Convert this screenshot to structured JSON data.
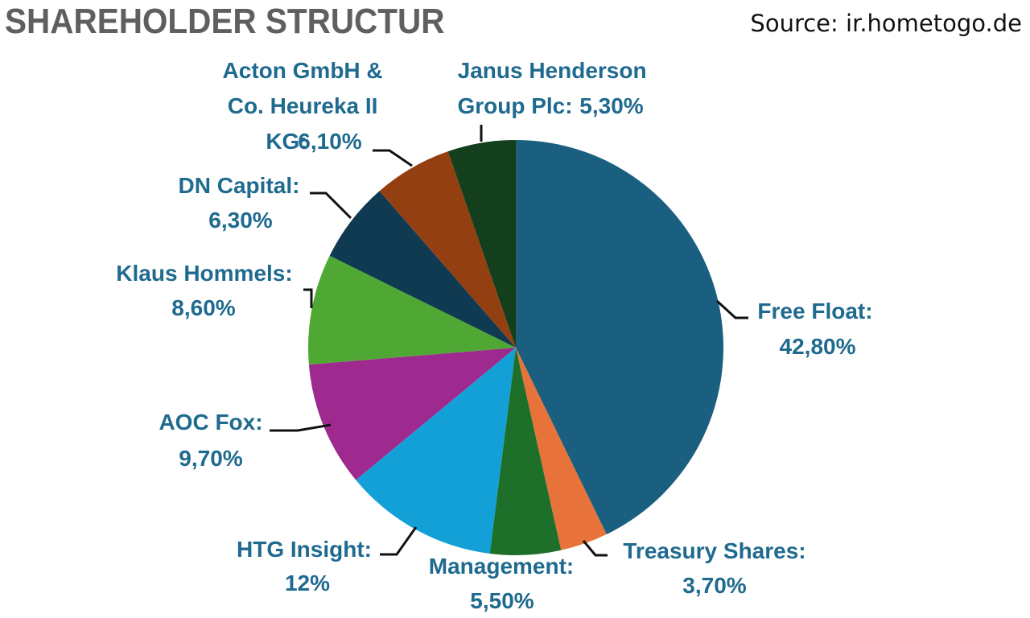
{
  "header": {
    "title": "SHAREHOLDER STRUCTUR",
    "source": "Source: ir.hometogo.de"
  },
  "chart_data": {
    "type": "pie",
    "title": "SHAREHOLDER STRUCTUR",
    "start_angle_deg": 0,
    "direction": "clockwise",
    "slices": [
      {
        "key": "free-float",
        "name": "Free Float:",
        "value_label": "42,80%",
        "value": 42.8,
        "color": "#1b5f80"
      },
      {
        "key": "treasury-shares",
        "name": "Treasury Shares:",
        "value_label": "3,70%",
        "value": 3.7,
        "color": "#e8733a"
      },
      {
        "key": "management",
        "name": "Management:",
        "value_label": "5,50%",
        "value": 5.5,
        "color": "#1e6f2a"
      },
      {
        "key": "htg-insight",
        "name": "HTG Insight:",
        "value_label": "12%",
        "value": 12.0,
        "color": "#12a0d6"
      },
      {
        "key": "aoc-fox",
        "name": "AOC Fox:",
        "value_label": "9,70%",
        "value": 9.7,
        "color": "#9e2a8f"
      },
      {
        "key": "klaus-hommels",
        "name": "Klaus Hommels:",
        "value_label": "8,60%",
        "value": 8.6,
        "color": "#4fa834"
      },
      {
        "key": "dn-capital",
        "name": "DN Capital:",
        "value_label": "6,30%",
        "value": 6.3,
        "color": "#0f3a52"
      },
      {
        "key": "acton",
        "name": "Acton GmbH & Co. Heureka II KG:",
        "value_label": "6,10%",
        "value": 6.1,
        "color": "#933f11"
      },
      {
        "key": "janus-henderson",
        "name": "Janus Henderson Group Plc:",
        "value_label": "5,30%",
        "value": 5.3,
        "color": "#143f1c"
      }
    ]
  }
}
